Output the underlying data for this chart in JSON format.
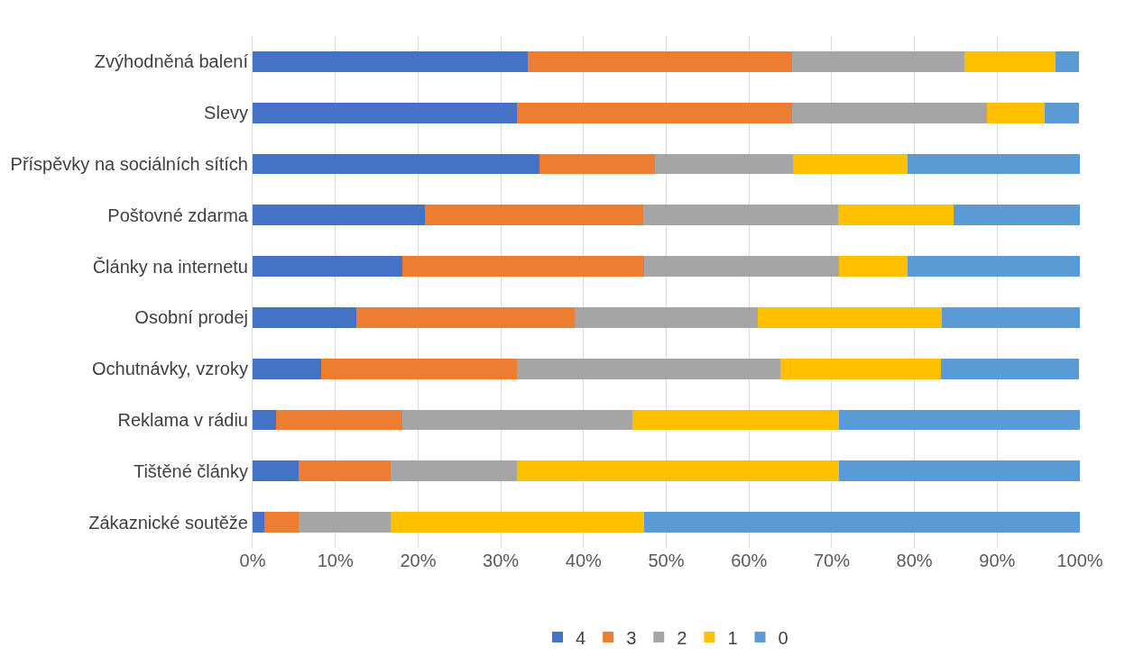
{
  "chart_data": {
    "type": "bar",
    "orientation": "horizontal",
    "stacked": true,
    "categories": [
      "Zvýhodněná balení",
      "Slevy",
      "Příspěvky na sociálních sítích",
      "Poštovné zdarma",
      "Články na internetu",
      "Osobní prodej",
      "Ochutnávky, vzroky",
      "Reklama v rádiu",
      "Tištěné články",
      "Zákaznické soutěže"
    ],
    "series": [
      {
        "name": "4",
        "color": "#4472c4",
        "values": [
          33.3,
          31.9,
          34.7,
          20.8,
          18.1,
          12.5,
          8.3,
          2.8,
          5.6,
          1.4
        ]
      },
      {
        "name": "3",
        "color": "#ed7d31",
        "values": [
          31.9,
          33.3,
          13.9,
          26.4,
          29.2,
          26.4,
          23.6,
          15.3,
          11.1,
          4.2
        ]
      },
      {
        "name": "2",
        "color": "#a5a5a5",
        "values": [
          20.8,
          23.6,
          16.7,
          23.6,
          23.6,
          22.2,
          31.9,
          27.8,
          15.3,
          11.1
        ]
      },
      {
        "name": "1",
        "color": "#ffc000",
        "values": [
          11.1,
          6.9,
          13.9,
          13.9,
          8.3,
          22.2,
          19.4,
          25.0,
          38.9,
          30.6
        ]
      },
      {
        "name": "0",
        "color": "#5b9bd5",
        "values": [
          2.8,
          4.2,
          20.8,
          15.3,
          20.8,
          16.7,
          16.7,
          29.1,
          29.1,
          52.7
        ]
      }
    ],
    "xlim": [
      0,
      100
    ],
    "xticks": [
      {
        "value": 0,
        "label": "0%"
      },
      {
        "value": 10,
        "label": "10%"
      },
      {
        "value": 20,
        "label": "20%"
      },
      {
        "value": 30,
        "label": "30%"
      },
      {
        "value": 40,
        "label": "40%"
      },
      {
        "value": 50,
        "label": "50%"
      },
      {
        "value": 60,
        "label": "60%"
      },
      {
        "value": 70,
        "label": "70%"
      },
      {
        "value": 80,
        "label": "80%"
      },
      {
        "value": 90,
        "label": "90%"
      },
      {
        "value": 100,
        "label": "100%"
      }
    ],
    "grid": "x",
    "legend": "bottom"
  }
}
